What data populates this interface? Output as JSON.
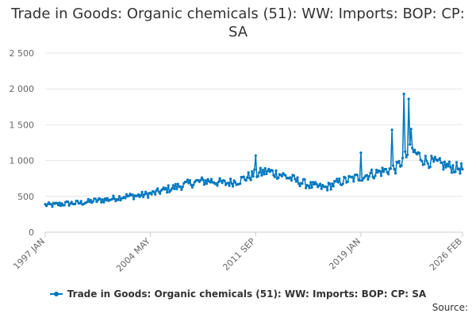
{
  "chart_title": "Trade in Goods: Organic chemicals (51): WW: Imports: BOP: CP: SA",
  "source_label": "Source:",
  "colors": {
    "series": "#0077be",
    "grid": "#e6e6e6",
    "axis": "#cccccc"
  },
  "chart_data": {
    "type": "line",
    "title": "Trade in Goods: Organic chemicals (51): WW: Imports: BOP: CP: SA",
    "xlabel": "",
    "ylabel": "",
    "x_range": [
      "1997 JAN",
      "2026 FEB"
    ],
    "x_ticks": [
      "1997 JAN",
      "2004 MAY",
      "2011 SEP",
      "2019 JAN",
      "2026 FEB"
    ],
    "y_ticks": [
      0,
      500,
      1000,
      1500,
      2000,
      2500
    ],
    "y_tick_labels": [
      "0",
      "500",
      "1 000",
      "1 500",
      "2 000",
      "2 500"
    ],
    "ylim": [
      0,
      2500
    ],
    "grid": true,
    "legend_position": "bottom",
    "series": [
      {
        "name": "Trade in Goods: Organic chemicals (51): WW: Imports: BOP: CP: SA",
        "frequency": "monthly",
        "start": "1997 JAN",
        "end": "2026 FEB",
        "annual_values": {
          "years": [
            1997,
            1998,
            1999,
            2000,
            2001,
            2002,
            2003,
            2004,
            2005,
            2006,
            2007,
            2008,
            2009,
            2010,
            2011,
            2012,
            2013,
            2014,
            2015,
            2016,
            2017,
            2018,
            2019,
            2020,
            2021,
            2022,
            2023,
            2024,
            2025,
            2026
          ],
          "values": [
            380,
            400,
            410,
            440,
            460,
            500,
            510,
            540,
            600,
            650,
            700,
            720,
            680,
            720,
            800,
            850,
            800,
            720,
            650,
            620,
            700,
            750,
            800,
            850,
            900,
            1150,
            1000,
            950,
            900,
            880
          ]
        },
        "peaks": [
          {
            "date": "2011 SEP",
            "value": 1070
          },
          {
            "date": "2019 JAN",
            "value": 1110
          },
          {
            "date": "2021 MAR",
            "value": 1430
          },
          {
            "date": "2022 JAN",
            "value": 1930
          },
          {
            "date": "2022 MAY",
            "value": 1860
          },
          {
            "date": "2022 JUL",
            "value": 1440
          }
        ]
      }
    ]
  }
}
